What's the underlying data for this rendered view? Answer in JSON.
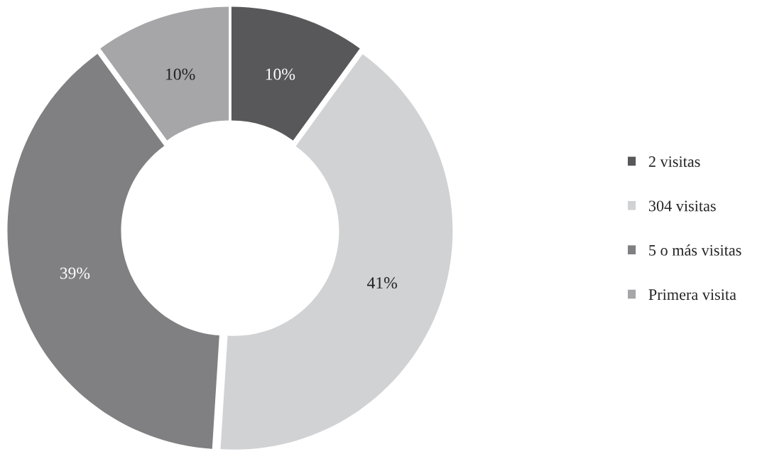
{
  "chart_data": {
    "type": "donut",
    "categories": [
      "2 visitas",
      "304 visitas",
      "5 o más visitas",
      "Primera visita"
    ],
    "values": [
      10,
      41,
      39,
      10
    ],
    "colors": [
      "#58585a",
      "#d1d2d4",
      "#808082",
      "#a6a6a8"
    ],
    "value_labels": [
      "10%",
      "41%",
      "39%",
      "10%"
    ],
    "legend": "right"
  }
}
